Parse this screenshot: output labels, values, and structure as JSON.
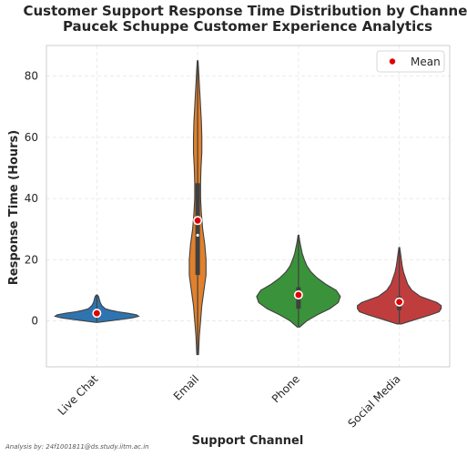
{
  "chart_data": {
    "type": "violin",
    "title": "Customer Support Response Time Distribution by Channel",
    "subtitle": "Paucek Schuppe Customer Experience Analytics",
    "xlabel": "Support Channel",
    "ylabel": "Response Time (Hours)",
    "ylim": [
      -15,
      90
    ],
    "yticks": [
      0,
      20,
      40,
      60,
      80
    ],
    "grid": true,
    "legend": {
      "position": "top-right",
      "entries": [
        "Mean"
      ]
    },
    "categories": [
      "Live Chat",
      "Email",
      "Phone",
      "Social Media"
    ],
    "colors": [
      "#2e74b0",
      "#e1812c",
      "#3a923a",
      "#c03d3e"
    ],
    "series": [
      {
        "category": "Live Chat",
        "min": -0.5,
        "max": 8.5,
        "mean": 2.5,
        "median": 2.2,
        "q1": 1.2,
        "q3": 3.5,
        "profile": [
          [
            -0.5,
            0.03
          ],
          [
            0,
            0.3
          ],
          [
            0.5,
            0.6
          ],
          [
            1,
            0.85
          ],
          [
            1.5,
            1.0
          ],
          [
            2,
            0.95
          ],
          [
            2.5,
            0.75
          ],
          [
            3,
            0.5
          ],
          [
            3.5,
            0.32
          ],
          [
            4,
            0.2
          ],
          [
            5,
            0.12
          ],
          [
            6,
            0.08
          ],
          [
            7,
            0.06
          ],
          [
            8,
            0.04
          ],
          [
            8.5,
            0.01
          ]
        ]
      },
      {
        "category": "Email",
        "min": -11,
        "max": 85,
        "mean": 32.8,
        "median": 28,
        "q1": 15,
        "q3": 45,
        "profile": [
          [
            -11,
            0.02
          ],
          [
            -5,
            0.04
          ],
          [
            0,
            0.07
          ],
          [
            5,
            0.1
          ],
          [
            10,
            0.15
          ],
          [
            15,
            0.2
          ],
          [
            20,
            0.2
          ],
          [
            25,
            0.17
          ],
          [
            30,
            0.12
          ],
          [
            35,
            0.09
          ],
          [
            40,
            0.07
          ],
          [
            45,
            0.07
          ],
          [
            50,
            0.08
          ],
          [
            55,
            0.1
          ],
          [
            60,
            0.1
          ],
          [
            65,
            0.09
          ],
          [
            70,
            0.07
          ],
          [
            75,
            0.05
          ],
          [
            80,
            0.03
          ],
          [
            85,
            0.01
          ]
        ]
      },
      {
        "category": "Phone",
        "min": -2,
        "max": 28,
        "mean": 8.5,
        "median": 7.5,
        "q1": 4,
        "q3": 11,
        "profile": [
          [
            -2,
            0.03
          ],
          [
            0,
            0.2
          ],
          [
            2,
            0.45
          ],
          [
            4,
            0.75
          ],
          [
            6,
            0.95
          ],
          [
            8,
            1.0
          ],
          [
            10,
            0.9
          ],
          [
            12,
            0.65
          ],
          [
            14,
            0.45
          ],
          [
            16,
            0.3
          ],
          [
            18,
            0.2
          ],
          [
            20,
            0.14
          ],
          [
            22,
            0.09
          ],
          [
            24,
            0.06
          ],
          [
            26,
            0.03
          ],
          [
            28,
            0.01
          ]
        ]
      },
      {
        "category": "Social Media",
        "min": -1,
        "max": 24,
        "mean": 6.2,
        "median": 5.5,
        "q1": 3.5,
        "q3": 8,
        "profile": [
          [
            -1,
            0.05
          ],
          [
            0,
            0.28
          ],
          [
            2,
            0.75
          ],
          [
            3,
            0.95
          ],
          [
            4,
            1.0
          ],
          [
            5,
            1.0
          ],
          [
            6,
            0.9
          ],
          [
            7,
            0.7
          ],
          [
            8,
            0.5
          ],
          [
            10,
            0.3
          ],
          [
            12,
            0.2
          ],
          [
            14,
            0.15
          ],
          [
            16,
            0.1
          ],
          [
            18,
            0.07
          ],
          [
            20,
            0.05
          ],
          [
            22,
            0.03
          ],
          [
            24,
            0.01
          ]
        ]
      }
    ],
    "mean_marker_color": "#e00000"
  },
  "footer": {
    "credit": "Analysis by: 24f1001811@ds.study.iitm.ac.in"
  }
}
